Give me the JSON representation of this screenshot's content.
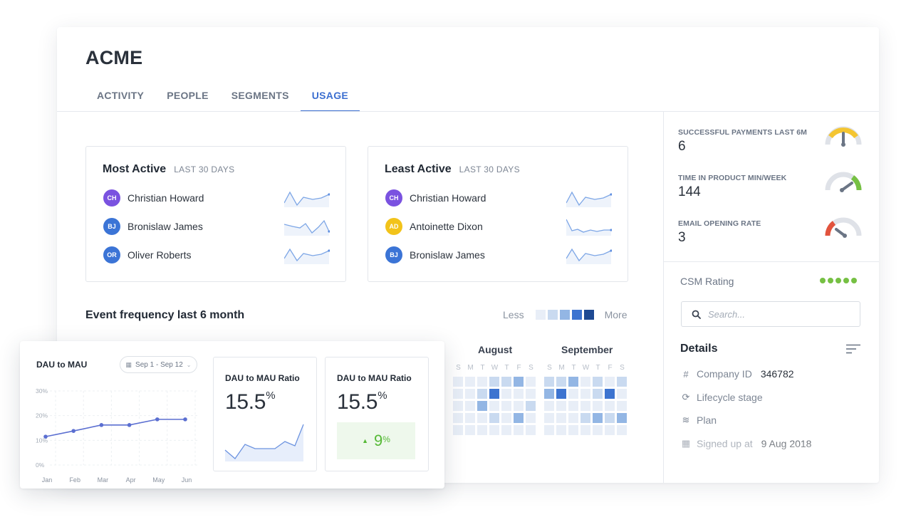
{
  "company": {
    "name": "ACME"
  },
  "tabs": [
    "ACTIVITY",
    "PEOPLE",
    "SEGMENTS",
    "USAGE"
  ],
  "active_tab": "USAGE",
  "most_active": {
    "title": "Most Active",
    "subtitle": "LAST 30 DAYS",
    "users": [
      {
        "initials": "CH",
        "name": "Christian Howard",
        "color": "#7a52e0"
      },
      {
        "initials": "BJ",
        "name": "Bronislaw James",
        "color": "#3b74d6"
      },
      {
        "initials": "OR",
        "name": "Oliver Roberts",
        "color": "#3b74d6"
      }
    ]
  },
  "least_active": {
    "title": "Least Active",
    "subtitle": "LAST 30 DAYS",
    "users": [
      {
        "initials": "CH",
        "name": "Christian Howard",
        "color": "#7a52e0"
      },
      {
        "initials": "AD",
        "name": "Antoinette Dixon",
        "color": "#f2c31a"
      },
      {
        "initials": "BJ",
        "name": "Bronislaw James",
        "color": "#3b74d6"
      }
    ]
  },
  "event_frequency": {
    "title": "Event frequency last 6 month",
    "legend_less": "Less",
    "legend_more": "More",
    "legend_colors": [
      "#e8eef7",
      "#c9daf0",
      "#93b6e4",
      "#3d74d0",
      "#1e4a93"
    ],
    "months": [
      "August",
      "September"
    ],
    "weekdays": [
      "S",
      "M",
      "T",
      "W",
      "T",
      "F",
      "S"
    ]
  },
  "metrics": [
    {
      "label": "SUCCESSFUL PAYMENTS LAST 6M",
      "value": "6",
      "gauge_color": "#f4c531"
    },
    {
      "label": "TIME IN PRODUCT MIN/WEEK",
      "value": "144",
      "gauge_color": "#76c043"
    },
    {
      "label": "EMAIL OPENING RATE",
      "value": "3",
      "gauge_color": "#e2533d"
    }
  ],
  "csm": {
    "label": "CSM Rating",
    "rating": 5,
    "color": "#76c043"
  },
  "search": {
    "placeholder": "Search..."
  },
  "details": {
    "title": "Details",
    "rows": [
      {
        "icon": "#",
        "icon_name": "hash-icon",
        "label": "Company ID",
        "value": "346782"
      },
      {
        "icon": "⟳",
        "icon_name": "lifecycle-icon",
        "label": "Lifecycle stage",
        "value": ""
      },
      {
        "icon": "≋",
        "icon_name": "layers-icon",
        "label": "Plan",
        "value": ""
      },
      {
        "icon": "▦",
        "icon_name": "calendar-icon",
        "label": "Signed up at",
        "value": "9 Aug 2018"
      }
    ]
  },
  "dau_widget": {
    "title": "DAU to MAU",
    "date_range": "Sep 1 - Sep 12",
    "y_ticks": [
      "30%",
      "20%",
      "10%",
      "0%"
    ]
  },
  "ratio_cards": [
    {
      "title": "DAU to MAU Ratio",
      "value": "15.5",
      "unit": "%"
    },
    {
      "title": "DAU to MAU Ratio",
      "value": "15.5",
      "unit": "%",
      "delta": "9",
      "delta_unit": "%"
    }
  ],
  "chart_data": {
    "type": "line",
    "title": "DAU to MAU",
    "categories": [
      "Jan",
      "Feb",
      "Mar",
      "Apr",
      "May",
      "Jun"
    ],
    "series": [
      {
        "values": [
          11.5,
          13.8,
          16.2,
          16.2,
          18.5,
          18.5
        ]
      }
    ],
    "ylim": [
      0,
      30
    ],
    "y_ticks": [
      0,
      10,
      20,
      30
    ],
    "grid": true,
    "color": "#5b6fd1"
  }
}
